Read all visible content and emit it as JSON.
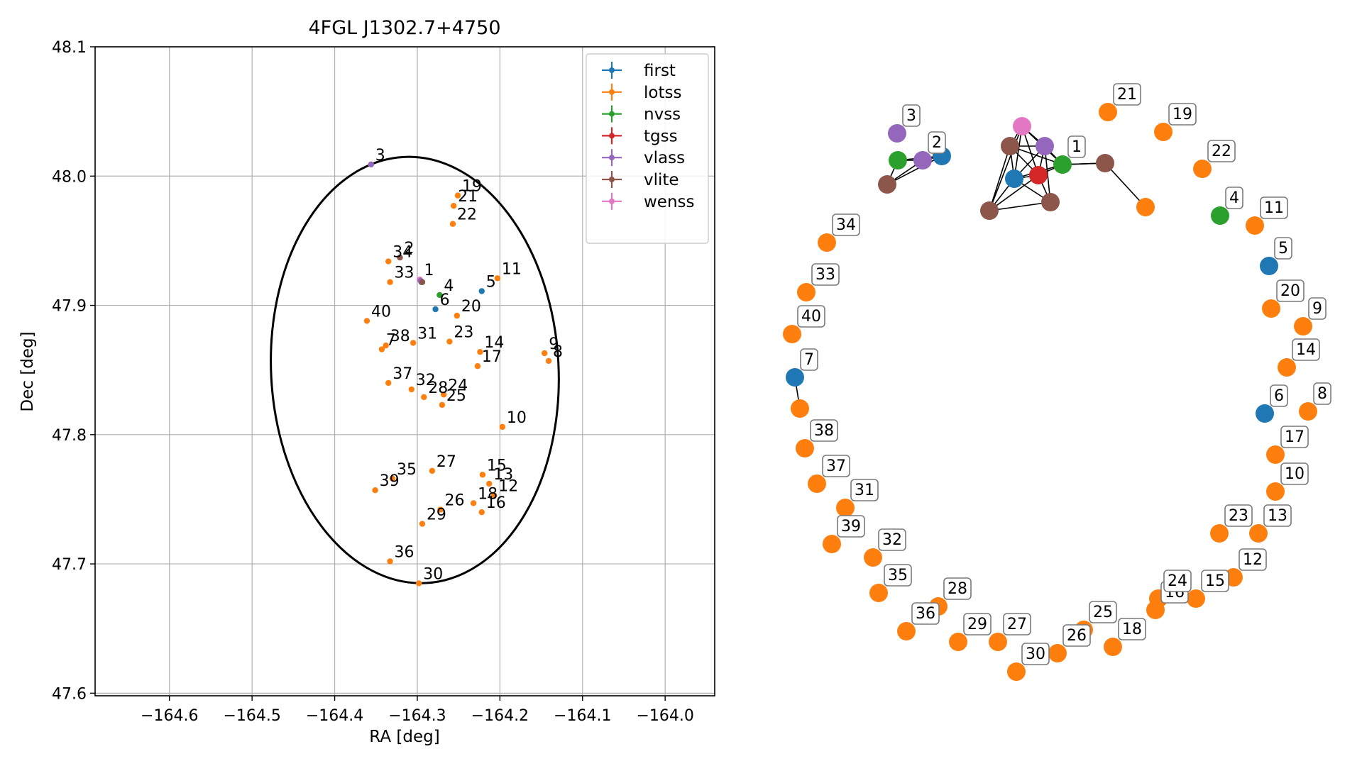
{
  "colors": {
    "first": "#1f77b4",
    "lotss": "#ff7f0e",
    "nvss": "#2ca02c",
    "tgss": "#d62728",
    "vlass": "#9467bd",
    "vlite": "#8c564b",
    "wenss": "#e377c2"
  },
  "chart_data": [
    {
      "type": "scatter",
      "title": "4FGL J1302.7+4750",
      "xlabel": "RA [deg]",
      "ylabel": "Dec [deg]",
      "xlim": [
        -164.69,
        -163.94
      ],
      "ylim": [
        47.598,
        48.1
      ],
      "xticks": [
        -164.6,
        -164.5,
        -164.4,
        -164.3,
        -164.2,
        -164.1,
        -164.0
      ],
      "yticks": [
        47.6,
        47.7,
        47.8,
        47.9,
        48.0,
        48.1
      ],
      "xtick_labels": [
        "−164.6",
        "−164.5",
        "−164.4",
        "−164.3",
        "−164.2",
        "−164.1",
        "−164.0"
      ],
      "ytick_labels": [
        "47.6",
        "47.7",
        "47.8",
        "47.9",
        "48.0",
        "48.1"
      ],
      "grid": true,
      "legend_position": "top-right",
      "legend": [
        "first",
        "lotss",
        "nvss",
        "tgss",
        "vlass",
        "vlite",
        "wenss"
      ],
      "ellipse": {
        "center_ra": -164.303,
        "center_dec": 47.85,
        "semi_ra": 0.174,
        "semi_dec": 0.165,
        "angle_deg": 3
      },
      "points": [
        {
          "label": "1",
          "survey": "wenss",
          "ra": -164.297,
          "dec": 47.92
        },
        {
          "label": "1",
          "survey": "tgss",
          "ra": -164.296,
          "dec": 47.919
        },
        {
          "label": "1",
          "survey": "first",
          "ra": -164.295,
          "dec": 47.918
        },
        {
          "label": "1",
          "survey": "nvss",
          "ra": -164.294,
          "dec": 47.918
        },
        {
          "label": "1",
          "survey": "vlass",
          "ra": -164.296,
          "dec": 47.919
        },
        {
          "label": "1",
          "survey": "vlite",
          "ra": -164.294,
          "dec": 47.918
        },
        {
          "label": "2",
          "survey": "vlite",
          "ra": -164.321,
          "dec": 47.937
        },
        {
          "label": "3",
          "survey": "vlass",
          "ra": -164.356,
          "dec": 48.009
        },
        {
          "label": "4",
          "survey": "nvss",
          "ra": -164.273,
          "dec": 47.908
        },
        {
          "label": "5",
          "survey": "first",
          "ra": -164.222,
          "dec": 47.911
        },
        {
          "label": "6",
          "survey": "first",
          "ra": -164.278,
          "dec": 47.897
        },
        {
          "label": "7",
          "survey": "lotss",
          "ra": -164.343,
          "dec": 47.866
        },
        {
          "label": "8",
          "survey": "lotss",
          "ra": -164.141,
          "dec": 47.857
        },
        {
          "label": "9",
          "survey": "lotss",
          "ra": -164.146,
          "dec": 47.863
        },
        {
          "label": "10",
          "survey": "lotss",
          "ra": -164.197,
          "dec": 47.806
        },
        {
          "label": "11",
          "survey": "lotss",
          "ra": -164.203,
          "dec": 47.921
        },
        {
          "label": "12",
          "survey": "lotss",
          "ra": -164.207,
          "dec": 47.753
        },
        {
          "label": "13",
          "survey": "lotss",
          "ra": -164.213,
          "dec": 47.762
        },
        {
          "label": "14",
          "survey": "lotss",
          "ra": -164.224,
          "dec": 47.864
        },
        {
          "label": "15",
          "survey": "lotss",
          "ra": -164.221,
          "dec": 47.769
        },
        {
          "label": "16",
          "survey": "lotss",
          "ra": -164.222,
          "dec": 47.74
        },
        {
          "label": "17",
          "survey": "lotss",
          "ra": -164.227,
          "dec": 47.853
        },
        {
          "label": "18",
          "survey": "lotss",
          "ra": -164.232,
          "dec": 47.747
        },
        {
          "label": "19",
          "survey": "lotss",
          "ra": -164.251,
          "dec": 47.985
        },
        {
          "label": "20",
          "survey": "lotss",
          "ra": -164.252,
          "dec": 47.892
        },
        {
          "label": "21",
          "survey": "lotss",
          "ra": -164.256,
          "dec": 47.977
        },
        {
          "label": "22",
          "survey": "lotss",
          "ra": -164.257,
          "dec": 47.963
        },
        {
          "label": "23",
          "survey": "lotss",
          "ra": -164.261,
          "dec": 47.872
        },
        {
          "label": "24",
          "survey": "lotss",
          "ra": -164.268,
          "dec": 47.831
        },
        {
          "label": "25",
          "survey": "lotss",
          "ra": -164.27,
          "dec": 47.823
        },
        {
          "label": "26",
          "survey": "lotss",
          "ra": -164.272,
          "dec": 47.742
        },
        {
          "label": "27",
          "survey": "lotss",
          "ra": -164.282,
          "dec": 47.772
        },
        {
          "label": "28",
          "survey": "lotss",
          "ra": -164.292,
          "dec": 47.829
        },
        {
          "label": "29",
          "survey": "lotss",
          "ra": -164.294,
          "dec": 47.731
        },
        {
          "label": "30",
          "survey": "lotss",
          "ra": -164.298,
          "dec": 47.685
        },
        {
          "label": "31",
          "survey": "lotss",
          "ra": -164.305,
          "dec": 47.871
        },
        {
          "label": "32",
          "survey": "lotss",
          "ra": -164.307,
          "dec": 47.835
        },
        {
          "label": "33",
          "survey": "lotss",
          "ra": -164.333,
          "dec": 47.918
        },
        {
          "label": "34",
          "survey": "lotss",
          "ra": -164.335,
          "dec": 47.934
        },
        {
          "label": "35",
          "survey": "lotss",
          "ra": -164.33,
          "dec": 47.766
        },
        {
          "label": "36",
          "survey": "lotss",
          "ra": -164.333,
          "dec": 47.702
        },
        {
          "label": "37",
          "survey": "lotss",
          "ra": -164.335,
          "dec": 47.84
        },
        {
          "label": "38",
          "survey": "lotss",
          "ra": -164.338,
          "dec": 47.869
        },
        {
          "label": "39",
          "survey": "lotss",
          "ra": -164.351,
          "dec": 47.757
        },
        {
          "label": "40",
          "survey": "lotss",
          "ra": -164.361,
          "dec": 47.888
        }
      ]
    },
    {
      "type": "network",
      "nodes": [
        {
          "label": "1",
          "survey": "first"
        },
        {
          "label": "1",
          "survey": "tgss"
        },
        {
          "label": "1",
          "survey": "nvss"
        },
        {
          "label": "1",
          "survey": "wenss"
        },
        {
          "label": "1",
          "survey": "vlass"
        },
        {
          "label": "1",
          "survey": "vlite"
        },
        {
          "label": "1",
          "survey": "vlite"
        },
        {
          "label": "1",
          "survey": "vlite"
        },
        {
          "label": "1",
          "survey": "vlite"
        },
        {
          "label": "1",
          "survey": "lotss"
        },
        {
          "label": "2",
          "survey": "first"
        },
        {
          "label": "2",
          "survey": "nvss"
        },
        {
          "label": "2",
          "survey": "vlass"
        },
        {
          "label": "2",
          "survey": "vlite"
        },
        {
          "label": "3",
          "survey": "vlass"
        },
        {
          "label": "4",
          "survey": "nvss"
        },
        {
          "label": "5",
          "survey": "first"
        },
        {
          "label": "6",
          "survey": "first"
        },
        {
          "label": "7",
          "survey": "first"
        },
        {
          "label": "7",
          "survey": "lotss"
        },
        {
          "label": "8",
          "survey": "lotss"
        },
        {
          "label": "9",
          "survey": "lotss"
        },
        {
          "label": "10",
          "survey": "lotss"
        },
        {
          "label": "11",
          "survey": "lotss"
        },
        {
          "label": "12",
          "survey": "lotss"
        },
        {
          "label": "13",
          "survey": "lotss"
        },
        {
          "label": "14",
          "survey": "lotss"
        },
        {
          "label": "15",
          "survey": "lotss"
        },
        {
          "label": "16",
          "survey": "lotss"
        },
        {
          "label": "17",
          "survey": "lotss"
        },
        {
          "label": "18",
          "survey": "lotss"
        },
        {
          "label": "19",
          "survey": "lotss"
        },
        {
          "label": "20",
          "survey": "lotss"
        },
        {
          "label": "21",
          "survey": "lotss"
        },
        {
          "label": "22",
          "survey": "lotss"
        },
        {
          "label": "23",
          "survey": "lotss"
        },
        {
          "label": "24",
          "survey": "lotss"
        },
        {
          "label": "25",
          "survey": "lotss"
        },
        {
          "label": "26",
          "survey": "lotss"
        },
        {
          "label": "27",
          "survey": "lotss"
        },
        {
          "label": "28",
          "survey": "lotss"
        },
        {
          "label": "29",
          "survey": "lotss"
        },
        {
          "label": "30",
          "survey": "lotss"
        },
        {
          "label": "31",
          "survey": "lotss"
        },
        {
          "label": "32",
          "survey": "lotss"
        },
        {
          "label": "33",
          "survey": "lotss"
        },
        {
          "label": "34",
          "survey": "lotss"
        },
        {
          "label": "35",
          "survey": "lotss"
        },
        {
          "label": "36",
          "survey": "lotss"
        },
        {
          "label": "37",
          "survey": "lotss"
        },
        {
          "label": "38",
          "survey": "lotss"
        },
        {
          "label": "39",
          "survey": "lotss"
        },
        {
          "label": "40",
          "survey": "lotss"
        }
      ],
      "edges": [
        [
          0,
          1
        ],
        [
          0,
          2
        ],
        [
          0,
          3
        ],
        [
          0,
          4
        ],
        [
          0,
          5
        ],
        [
          0,
          6
        ],
        [
          0,
          7
        ],
        [
          1,
          2
        ],
        [
          1,
          3
        ],
        [
          1,
          4
        ],
        [
          1,
          5
        ],
        [
          1,
          6
        ],
        [
          1,
          7
        ],
        [
          2,
          3
        ],
        [
          2,
          4
        ],
        [
          2,
          5
        ],
        [
          2,
          8
        ],
        [
          3,
          4
        ],
        [
          3,
          5
        ],
        [
          3,
          6
        ],
        [
          4,
          5
        ],
        [
          4,
          7
        ],
        [
          5,
          6
        ],
        [
          6,
          7
        ],
        [
          2,
          8
        ],
        [
          8,
          9
        ],
        [
          10,
          11
        ],
        [
          10,
          12
        ],
        [
          10,
          13
        ],
        [
          11,
          12
        ],
        [
          11,
          13
        ],
        [
          12,
          13
        ],
        [
          18,
          19
        ]
      ]
    }
  ]
}
